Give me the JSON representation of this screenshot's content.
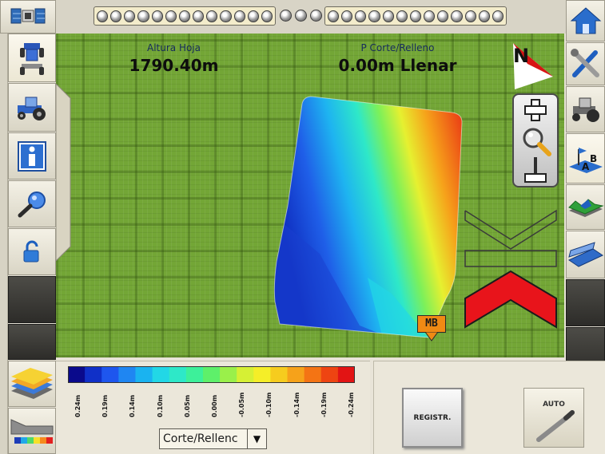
{
  "readouts": {
    "height": {
      "label": "Altura Hoja",
      "value": "1790.40m"
    },
    "cut_fill": {
      "label": "P Corte/Relleno",
      "value": "0.00m Llenar"
    }
  },
  "compass": {
    "label": "N"
  },
  "marker": {
    "label": "MB"
  },
  "legend": {
    "colors": [
      "#0a0a8c",
      "#1030c8",
      "#1e56ee",
      "#1f86f2",
      "#1ab3f0",
      "#22d7e6",
      "#2ee8c8",
      "#3df09a",
      "#5ef06a",
      "#9af04a",
      "#d6f034",
      "#f5ee28",
      "#f6cc1e",
      "#f6a21a",
      "#f47414",
      "#ee4412",
      "#e21414"
    ],
    "ticks": [
      "0.24m",
      "0.19m",
      "0.14m",
      "0.10m",
      "0.05m",
      "0.00m",
      "-0.05m",
      "-0.10m",
      "-0.14m",
      "-0.19m",
      "-0.24m"
    ]
  },
  "layer_select": {
    "value": "Corte/Rellenc"
  },
  "buttons": {
    "record": "REGISTR.",
    "auto": "AUTO"
  },
  "colors": {
    "guidance_chevron": "#e8141b",
    "grass": "#73a636"
  },
  "icons": {
    "left": [
      "gps-satellite-icon",
      "implement-icon",
      "tractor-icon",
      "info-icon",
      "magnifier-icon",
      "lock-icon",
      "layers-icon",
      "profile-icon"
    ],
    "right": [
      "home-icon",
      "tools-icon",
      "tractor-settings-icon",
      "survey-icon",
      "terrain-icon",
      "blade-icon"
    ]
  }
}
